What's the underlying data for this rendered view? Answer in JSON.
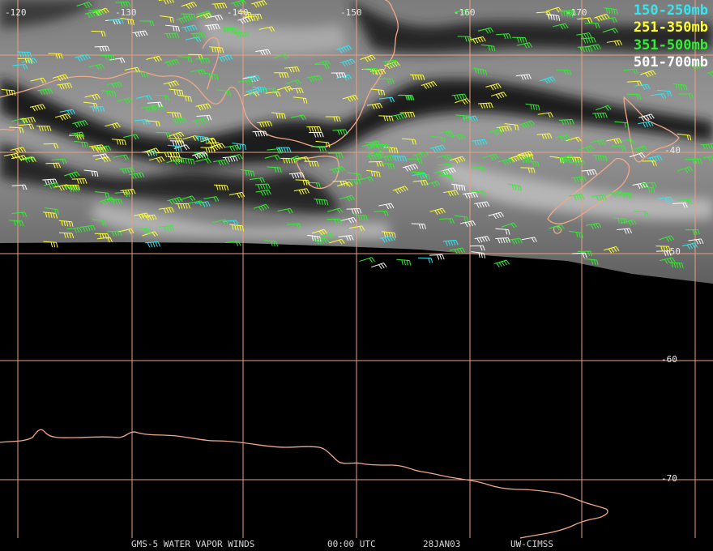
{
  "map": {
    "longitude_labels": [
      {
        "text": "-120",
        "lon": -120
      },
      {
        "text": "-130",
        "lon": -130
      },
      {
        "text": "-140",
        "lon": -140
      },
      {
        "text": "-150",
        "lon": -150
      },
      {
        "text": "-160",
        "lon": -160
      },
      {
        "text": "-170",
        "lon": -170
      }
    ],
    "latitude_labels": [
      {
        "text": "-40",
        "lat": -40
      },
      {
        "text": "-50",
        "lat": -50
      },
      {
        "text": "-60",
        "lat": -60
      },
      {
        "text": "-70",
        "lat": -70
      }
    ],
    "colors": {
      "grid": "#e8a080",
      "coast": "#f0a888",
      "level_150_250": "#33e6f0",
      "level_251_350": "#ffff33",
      "level_351_500": "#33ee33",
      "level_501_700": "#ffffff"
    }
  },
  "legend": [
    {
      "label": "150-250mb",
      "color": "#33e6f0",
      "level": "150-250"
    },
    {
      "label": "251-350mb",
      "color": "#ffff33",
      "level": "251-350"
    },
    {
      "label": "351-500mb",
      "color": "#33ee33",
      "level": "351-500"
    },
    {
      "label": "501-700mb",
      "color": "#ffffff",
      "level": "501-700"
    }
  ],
  "footer": {
    "product": "GMS-5 WATER VAPOR WINDS",
    "time": "00:00 UTC",
    "date": "28JAN03",
    "source": "UW-CIMSS"
  }
}
